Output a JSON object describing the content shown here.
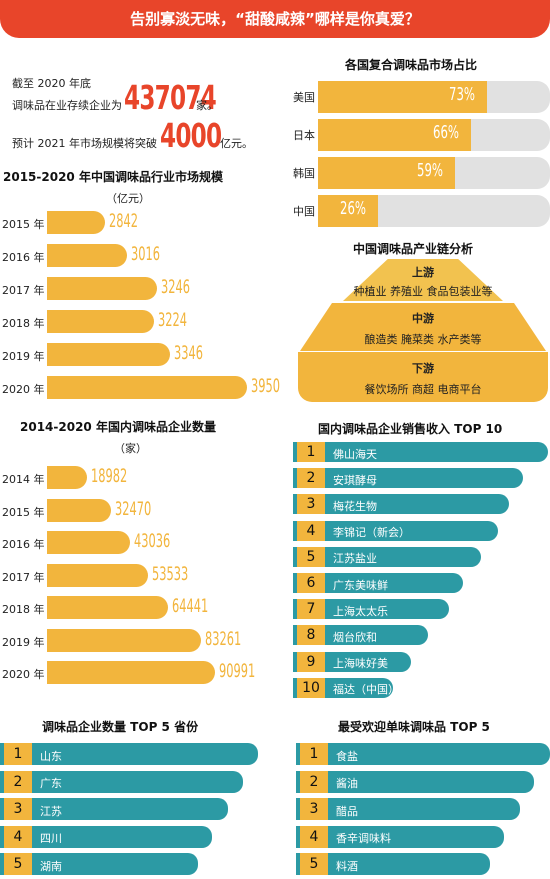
{
  "banner": "告别寡淡无味，“甜酸咸辣”哪样是你真爱？",
  "intro": {
    "line1": "截至 2020 年底",
    "line2_prefix": "调味品在业存续企业为",
    "companies": "437074",
    "line2_suffix": "家。",
    "line3_prefix": "预计 2021 年市场规模将突破",
    "forecast": "4000",
    "line3_suffix": "亿元。"
  },
  "colors": {
    "accent_red": "#e8452a",
    "gold": "#f2b53d",
    "teal": "#2c9aa4",
    "track": "#e1e1e1"
  },
  "chart_data": [
    {
      "type": "bar",
      "title": "2015-2020 年中国调味品行业市场规模",
      "unit": "（亿元）",
      "categories": [
        "2015 年",
        "2016 年",
        "2017 年",
        "2018 年",
        "2019 年",
        "2020 年"
      ],
      "values": [
        2842,
        3016,
        3246,
        3224,
        3346,
        3950
      ]
    },
    {
      "type": "bar",
      "title": "2014-2020 年国内调味品企业数量",
      "unit": "（家）",
      "categories": [
        "2014 年",
        "2015 年",
        "2016 年",
        "2017 年",
        "2018 年",
        "2019 年",
        "2020 年"
      ],
      "values": [
        18982,
        32470,
        43036,
        53533,
        64441,
        83261,
        90991
      ]
    },
    {
      "type": "bar",
      "title": "各国复合调味品市场占比",
      "categories": [
        "美国",
        "日本",
        "韩国",
        "中国"
      ],
      "values": [
        73,
        66,
        59,
        26
      ],
      "value_labels": [
        "73%",
        "66%",
        "59%",
        "26%"
      ],
      "max": 100
    },
    {
      "type": "table",
      "title": "国内调味品企业销售收入 TOP 10",
      "ranks": [
        "1",
        "2",
        "3",
        "4",
        "5",
        "6",
        "7",
        "8",
        "9",
        "10"
      ],
      "items": [
        "佛山海天",
        "安琪酵母",
        "梅花生物",
        "李锦记（新会）",
        "江苏盐业",
        "广东美味鲜",
        "上海太太乐",
        "烟台欣和",
        "上海味好美",
        "福达（中国）"
      ]
    },
    {
      "type": "table",
      "title": "调味品企业数量 TOP 5 省份",
      "ranks": [
        "1",
        "2",
        "3",
        "4",
        "5"
      ],
      "items": [
        "山东",
        "广东",
        "江苏",
        "四川",
        "湖南"
      ]
    },
    {
      "type": "table",
      "title": "最受欢迎单味调味品 TOP 5",
      "ranks": [
        "1",
        "2",
        "3",
        "4",
        "5"
      ],
      "items": [
        "食盐",
        "酱油",
        "醋品",
        "香辛调味料",
        "料酒"
      ]
    }
  ],
  "chain": {
    "title": "中国调味品产业链分析",
    "tiers": [
      {
        "name": "上游",
        "desc": "种植业 养殖业 食品包装业等"
      },
      {
        "name": "中游",
        "desc": "酿造类 腌菜类 水产类等"
      },
      {
        "name": "下游",
        "desc": "餐饮场所 商超 电商平台"
      }
    ]
  }
}
